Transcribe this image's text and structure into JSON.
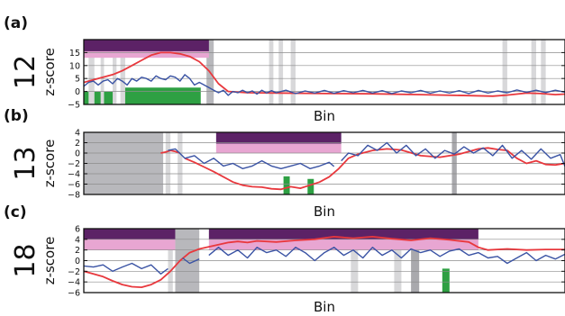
{
  "chart_data": [
    {
      "type": "line",
      "panel_label": "(a)",
      "row_label": "12",
      "ylabel": "z-score",
      "xlabel": "Bin",
      "ylim": [
        -5,
        20
      ],
      "yticks": [
        -5,
        0,
        5,
        10,
        15
      ],
      "ytick_labels": [
        "−5",
        "0",
        "5",
        "10",
        "15"
      ],
      "xlim": [
        0,
        100
      ],
      "grid": "horizontal",
      "colors": {
        "red": "#e8383d",
        "blue": "#3a53a4",
        "dark_purple": "#5c2266",
        "pink": "#e8a6d2",
        "green": "#2ea043",
        "gray": "#b8b8bc",
        "light_gray": "#d8d8da",
        "mid_gray": "#a9a9ad"
      },
      "regions": [
        {
          "kind": "gray",
          "x0": 25.5,
          "x1": 27.0
        },
        {
          "kind": "light_gray",
          "x0": 1.0,
          "x1": 2.2
        },
        {
          "kind": "light_gray",
          "x0": 3.5,
          "x1": 4.2
        },
        {
          "kind": "light_gray",
          "x0": 6.0,
          "x1": 6.8
        },
        {
          "kind": "light_gray",
          "x0": 7.6,
          "x1": 8.6
        },
        {
          "kind": "light_gray",
          "x0": 38.5,
          "x1": 39.4
        },
        {
          "kind": "light_gray",
          "x0": 40.5,
          "x1": 41.4
        },
        {
          "kind": "light_gray",
          "x0": 43.0,
          "x1": 44.0
        },
        {
          "kind": "light_gray",
          "x0": 87.0,
          "x1": 88.0
        },
        {
          "kind": "light_gray",
          "x0": 93.0,
          "x1": 94.0
        },
        {
          "kind": "light_gray",
          "x0": 95.0,
          "x1": 96.0
        }
      ],
      "top_bars": [
        {
          "kind": "dark_purple",
          "x0": 0,
          "x1": 26,
          "y0": 15.5,
          "y1": 20
        },
        {
          "kind": "pink",
          "x0": 0,
          "x1": 26,
          "y0": 13,
          "y1": 15.5
        }
      ],
      "green_bars": [
        {
          "x0": 0,
          "x1": 1.0,
          "y0": -5,
          "y1": 0
        },
        {
          "x0": 2.2,
          "x1": 3.5,
          "y0": -5,
          "y1": 0
        },
        {
          "x0": 4.2,
          "x1": 6.0,
          "y0": -5,
          "y1": 0
        },
        {
          "x0": 8.6,
          "x1": 24.3,
          "y0": -5,
          "y1": 1.5
        }
      ],
      "series": [
        {
          "color": "red",
          "x": [
            0,
            2,
            4,
            6,
            8,
            10,
            12,
            14,
            16,
            18,
            20,
            22,
            24,
            26,
            28,
            30,
            34,
            40,
            50,
            60,
            70,
            80,
            85,
            88,
            90,
            92,
            95,
            98,
            100
          ],
          "y": [
            3.5,
            4.5,
            5.5,
            6.5,
            8,
            10,
            12,
            14,
            15,
            15,
            14.5,
            13.5,
            11.5,
            8,
            3,
            0,
            -0.5,
            -0.6,
            -0.8,
            -0.9,
            -1.2,
            -1.6,
            -1.8,
            -1.4,
            -1.0,
            -0.6,
            -0.8,
            -1.2,
            -1.0
          ]
        },
        {
          "color": "blue",
          "x": [
            0,
            1,
            2,
            3,
            4,
            5,
            6,
            7,
            8,
            9,
            10,
            11,
            12,
            13,
            14,
            15,
            16,
            17,
            18,
            19,
            20,
            21,
            22,
            23,
            24,
            25,
            26,
            27,
            28,
            29,
            30,
            31,
            32,
            33,
            34,
            35,
            36,
            37,
            38,
            39,
            40,
            42,
            44,
            46,
            48,
            50,
            52,
            54,
            56,
            58,
            60,
            62,
            64,
            66,
            68,
            70,
            72,
            74,
            76,
            78,
            80,
            82,
            84,
            86,
            88,
            90,
            92,
            94,
            96,
            98,
            100
          ],
          "y": [
            2,
            3.5,
            4,
            2.5,
            4,
            4.5,
            3,
            5,
            4,
            2.5,
            5,
            4,
            5.5,
            5,
            4,
            6,
            5,
            4.5,
            6,
            5.5,
            4,
            6.5,
            5,
            2.5,
            3.5,
            2.5,
            1.5,
            0.5,
            -0.5,
            0.5,
            -1.5,
            0,
            -0.5,
            0.5,
            -0.5,
            0.2,
            -1.0,
            0.5,
            -0.6,
            0.3,
            -0.5,
            0.5,
            -0.8,
            0.2,
            -0.6,
            0.4,
            -0.7,
            0.3,
            -0.5,
            0.4,
            -0.6,
            0.3,
            -0.8,
            0.2,
            -0.5,
            0.4,
            -0.7,
            0.2,
            -0.6,
            0.3,
            -0.8,
            0.4,
            -0.6,
            0.2,
            -0.5,
            0.6,
            -0.3,
            0.5,
            -0.4,
            0.5,
            -0.3
          ]
        }
      ]
    },
    {
      "type": "line",
      "panel_label": "(b)",
      "row_label": "13",
      "ylabel": "z-score",
      "xlabel": "Bin",
      "ylim": [
        -8,
        4
      ],
      "yticks": [
        -8,
        -6,
        -4,
        -2,
        0,
        2,
        4
      ],
      "ytick_labels": [
        "−8",
        "−6",
        "−4",
        "−2",
        "0",
        "2",
        "4"
      ],
      "xlim": [
        0,
        100
      ],
      "grid": "horizontal",
      "colors": {
        "red": "#e8383d",
        "blue": "#3a53a4",
        "dark_purple": "#5c2266",
        "pink": "#e8a6d2",
        "green": "#2ea043",
        "gray": "#b8b8bc",
        "light_gray": "#d8d8da",
        "mid_gray": "#a9a9ad"
      },
      "regions": [
        {
          "kind": "gray",
          "x0": 0,
          "x1": 16.5
        },
        {
          "kind": "light_gray",
          "x0": 17.0,
          "x1": 18.0
        },
        {
          "kind": "light_gray",
          "x0": 19.5,
          "x1": 20.5
        },
        {
          "kind": "mid_gray",
          "x0": 76.5,
          "x1": 77.5
        }
      ],
      "top_bars": [
        {
          "kind": "dark_purple",
          "x0": 27.5,
          "x1": 53.5,
          "y0": 1.8,
          "y1": 4
        },
        {
          "kind": "pink",
          "x0": 27.5,
          "x1": 53.5,
          "y0": 0,
          "y1": 1.8
        }
      ],
      "green_bars": [
        {
          "x0": 41.5,
          "x1": 42.8,
          "y0": -8,
          "y1": -4.5
        },
        {
          "x0": 46.5,
          "x1": 47.8,
          "y0": -8,
          "y1": -5
        }
      ],
      "series": [
        {
          "color": "red",
          "segments": [
            {
              "x": [
                16,
                17,
                18,
                19,
                20
              ],
              "y": [
                0,
                0.2,
                0.5,
                0.3,
                0
              ]
            },
            {
              "x": [
                21,
                23,
                25,
                27,
                29,
                31,
                33,
                35,
                37,
                39,
                41,
                43,
                45,
                47,
                49,
                51,
                53,
                55,
                57,
                60,
                63,
                66,
                70,
                74,
                78,
                82,
                84,
                86,
                88,
                90,
                92,
                94,
                96,
                98,
                100
              ],
              "y": [
                -1.0,
                -1.8,
                -2.7,
                -3.6,
                -4.6,
                -5.6,
                -6.2,
                -6.5,
                -6.6,
                -6.9,
                -7.0,
                -6.5,
                -6.8,
                -6.2,
                -5.6,
                -4.6,
                -3.0,
                -1.0,
                -0.2,
                0.5,
                0.8,
                0.6,
                -0.5,
                -0.8,
                -0.2,
                0.8,
                1.0,
                0.7,
                0.5,
                -1.0,
                -2.0,
                -1.5,
                -2.2,
                -2.3,
                -2.0
              ]
            }
          ]
        },
        {
          "color": "blue",
          "segments": [
            {
              "x": [
                17.5,
                19,
                21,
                23,
                25,
                27,
                29,
                31,
                33,
                35,
                37,
                39,
                41,
                43,
                45,
                47,
                49,
                51,
                52
              ],
              "y": [
                0.5,
                0.8,
                -1.0,
                -0.5,
                -2.0,
                -1.0,
                -2.5,
                -2.0,
                -3.0,
                -2.5,
                -1.5,
                -2.5,
                -3.0,
                -2.5,
                -2.0,
                -3.0,
                -2.5,
                -1.8,
                -2.6
              ]
            },
            {
              "x": [
                53.5,
                55,
                57,
                59,
                61,
                63,
                65,
                67,
                69,
                71,
                73,
                75,
                77,
                79,
                81,
                83,
                85,
                87,
                89,
                91,
                93,
                95,
                97,
                99,
                100
              ],
              "y": [
                -1.5,
                0,
                -0.5,
                1.5,
                0.5,
                2.0,
                0,
                1.5,
                -0.5,
                0.8,
                -1.0,
                0.5,
                -0.2,
                1.2,
                0,
                1.0,
                -0.5,
                1.5,
                -1.0,
                0.5,
                -1.2,
                0.8,
                -1.0,
                -0.3,
                -2.6
              ]
            }
          ]
        }
      ]
    },
    {
      "type": "line",
      "panel_label": "(c)",
      "row_label": "18",
      "ylabel": "z-score",
      "xlabel": "Bin",
      "ylim": [
        -6,
        6
      ],
      "yticks": [
        -6,
        -4,
        -2,
        0,
        2,
        4,
        6
      ],
      "ytick_labels": [
        "−6",
        "−4",
        "−2",
        "0",
        "2",
        "4",
        "6"
      ],
      "xlim": [
        0,
        100
      ],
      "grid": "horizontal",
      "colors": {
        "red": "#e8383d",
        "blue": "#3a53a4",
        "dark_purple": "#5c2266",
        "pink": "#e8a6d2",
        "green": "#2ea043",
        "gray": "#b8b8bc",
        "light_gray": "#d8d8da",
        "mid_gray": "#a9a9ad"
      },
      "regions": [
        {
          "kind": "light_gray",
          "x0": 17.5,
          "x1": 18.5
        },
        {
          "kind": "gray",
          "x0": 19.0,
          "x1": 24.0
        },
        {
          "kind": "light_gray",
          "x0": 55.5,
          "x1": 57.0
        },
        {
          "kind": "light_gray",
          "x0": 64.5,
          "x1": 66.0
        },
        {
          "kind": "mid_gray",
          "x0": 68.0,
          "x1": 69.7
        }
      ],
      "top_bars": [
        {
          "kind": "dark_purple",
          "x0": 0,
          "x1": 19,
          "y0": 4,
          "y1": 6
        },
        {
          "kind": "pink",
          "x0": 0,
          "x1": 19,
          "y0": 2,
          "y1": 4
        },
        {
          "kind": "dark_purple",
          "x0": 26,
          "x1": 82,
          "y0": 4,
          "y1": 6
        },
        {
          "kind": "pink",
          "x0": 26,
          "x1": 82,
          "y0": 2,
          "y1": 4
        }
      ],
      "green_bars": [
        {
          "x0": 74.5,
          "x1": 76.0,
          "y0": -6,
          "y1": -1.5
        }
      ],
      "series": [
        {
          "color": "red",
          "x": [
            0,
            2,
            4,
            6,
            8,
            10,
            12,
            14,
            16,
            18,
            20,
            22,
            24,
            26,
            28,
            30,
            32,
            34,
            36,
            40,
            44,
            48,
            52,
            56,
            60,
            64,
            68,
            72,
            76,
            80,
            82,
            84,
            88,
            92,
            96,
            100
          ],
          "y": [
            -2.0,
            -2.5,
            -3.0,
            -3.8,
            -4.5,
            -4.9,
            -5.0,
            -4.5,
            -3.6,
            -2.0,
            0,
            1.5,
            2.2,
            2.6,
            3.0,
            3.4,
            3.6,
            3.4,
            3.7,
            3.5,
            3.8,
            4.0,
            4.5,
            4.2,
            4.5,
            4.1,
            3.8,
            4.2,
            3.9,
            3.5,
            2.5,
            2.0,
            2.2,
            2.0,
            2.1,
            2.1
          ]
        },
        {
          "color": "blue",
          "segments": [
            {
              "x": [
                0,
                2,
                4,
                6,
                8,
                10,
                12,
                14,
                16,
                17.5
              ],
              "y": [
                -1.0,
                -1.2,
                -0.8,
                -2.0,
                -1.2,
                -0.5,
                -1.5,
                -0.8,
                -2.5,
                -1.5
              ]
            },
            {
              "x": [
                20.5,
                22,
                24
              ],
              "y": [
                0.5,
                -0.5,
                0.3
              ]
            },
            {
              "x": [
                26,
                28,
                30,
                32,
                34,
                36,
                38,
                40,
                42,
                44,
                46,
                48,
                50,
                52,
                54,
                56,
                58,
                60,
                62,
                64,
                66,
                68,
                70,
                72,
                74,
                76,
                78,
                80,
                82,
                84,
                86,
                88,
                90,
                92,
                94,
                96,
                98,
                100
              ],
              "y": [
                1.0,
                2.5,
                1.0,
                2.0,
                0.5,
                2.5,
                1.5,
                2.0,
                0.8,
                2.5,
                1.5,
                0,
                1.5,
                2.5,
                1.0,
                2.0,
                0.5,
                2.5,
                1.0,
                2.0,
                0.5,
                2.2,
                1.5,
                2.0,
                0.8,
                1.8,
                2.2,
                1.0,
                1.5,
                0.5,
                0.8,
                -0.5,
                0.5,
                1.5,
                0,
                1.0,
                0.3,
                1.2
              ]
            }
          ]
        }
      ]
    }
  ]
}
